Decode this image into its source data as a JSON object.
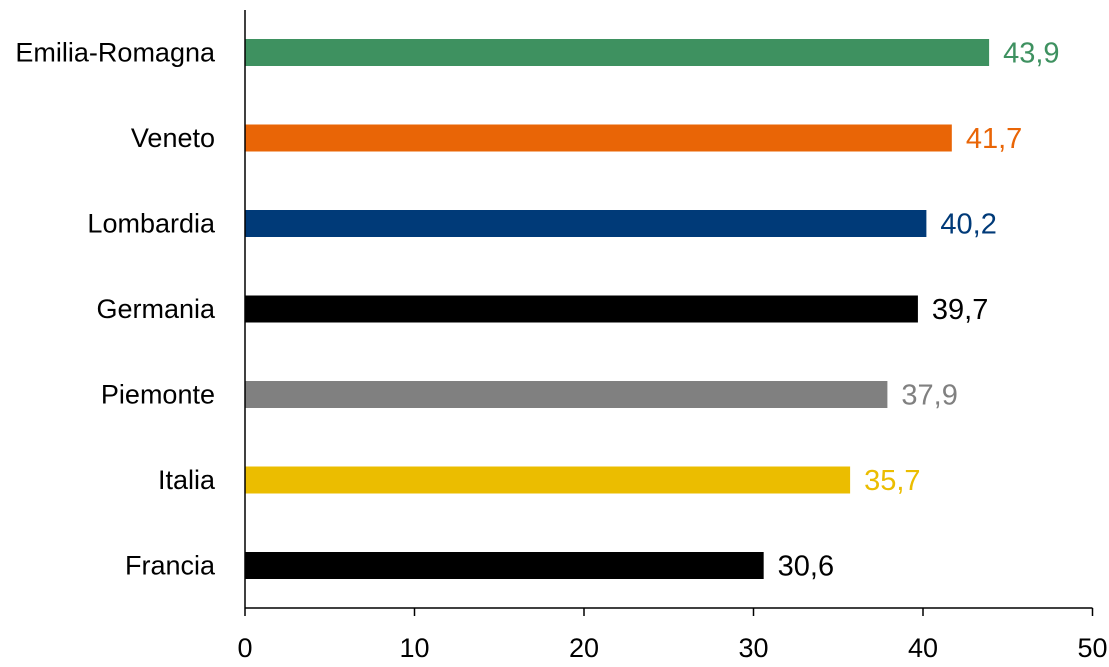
{
  "chart_data": {
    "type": "bar",
    "orientation": "horizontal",
    "categories": [
      "Emilia-Romagna",
      "Veneto",
      "Lombardia",
      "Germania",
      "Piemonte",
      "Italia",
      "Francia"
    ],
    "values": [
      43.9,
      41.7,
      40.2,
      39.7,
      37.9,
      35.7,
      30.6
    ],
    "value_labels": [
      "43,9",
      "41,7",
      "40,2",
      "39,7",
      "37,9",
      "35,7",
      "30,6"
    ],
    "colors": [
      "#3e9160",
      "#e96506",
      "#003a78",
      "#000000",
      "#808080",
      "#ebbd00",
      "#000000"
    ],
    "label_colors": [
      "#3e9160",
      "#e96506",
      "#003a78",
      "#000000",
      "#808080",
      "#ebbd00",
      "#000000"
    ],
    "xlim": [
      0,
      50
    ],
    "xticks": [
      0,
      10,
      20,
      30,
      40,
      50
    ],
    "grid": false,
    "legend": "none"
  }
}
